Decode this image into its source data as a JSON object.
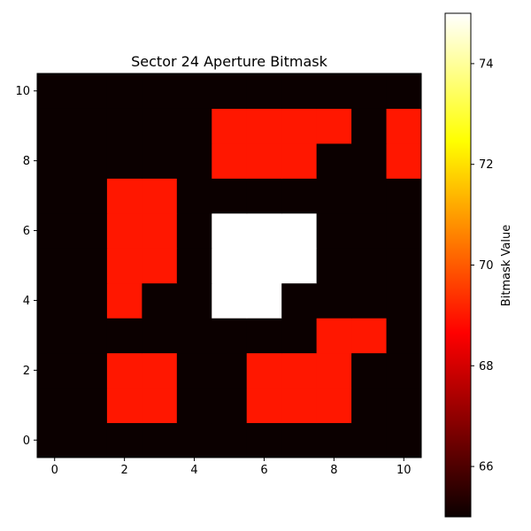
{
  "chart_data": {
    "type": "heatmap",
    "title": "Sector 24 Aperture Bitmask",
    "xlabel": "",
    "ylabel": "",
    "origin": "lower",
    "x_range": [
      0,
      10
    ],
    "y_range": [
      0,
      10
    ],
    "x_ticks": [
      0,
      2,
      4,
      6,
      8,
      10
    ],
    "y_ticks": [
      0,
      2,
      4,
      6,
      8,
      10
    ],
    "colormap": "hot",
    "vmin": 65,
    "vmax": 75,
    "colorbar": {
      "label": "Bitmask Value",
      "ticks": [
        66,
        68,
        70,
        72,
        74
      ]
    },
    "grid": false,
    "rows_bottom_to_top": [
      [
        65,
        65,
        65,
        65,
        65,
        65,
        65,
        65,
        65,
        65,
        65
      ],
      [
        65,
        65,
        69,
        69,
        65,
        65,
        69,
        69,
        69,
        65,
        65
      ],
      [
        65,
        65,
        69,
        69,
        65,
        65,
        69,
        69,
        69,
        65,
        65
      ],
      [
        65,
        65,
        65,
        65,
        65,
        65,
        65,
        65,
        69,
        69,
        65
      ],
      [
        65,
        65,
        69,
        65,
        65,
        75,
        75,
        65,
        65,
        65,
        65
      ],
      [
        65,
        65,
        69,
        69,
        65,
        75,
        75,
        75,
        65,
        65,
        65
      ],
      [
        65,
        65,
        69,
        69,
        65,
        75,
        75,
        75,
        65,
        65,
        65
      ],
      [
        65,
        65,
        69,
        69,
        65,
        65,
        65,
        65,
        65,
        65,
        65
      ],
      [
        65,
        65,
        65,
        65,
        65,
        69,
        69,
        69,
        65,
        65,
        69
      ],
      [
        65,
        65,
        65,
        65,
        65,
        69,
        69,
        69,
        69,
        65,
        69
      ],
      [
        65,
        65,
        65,
        65,
        65,
        65,
        65,
        65,
        65,
        65,
        65
      ]
    ]
  }
}
